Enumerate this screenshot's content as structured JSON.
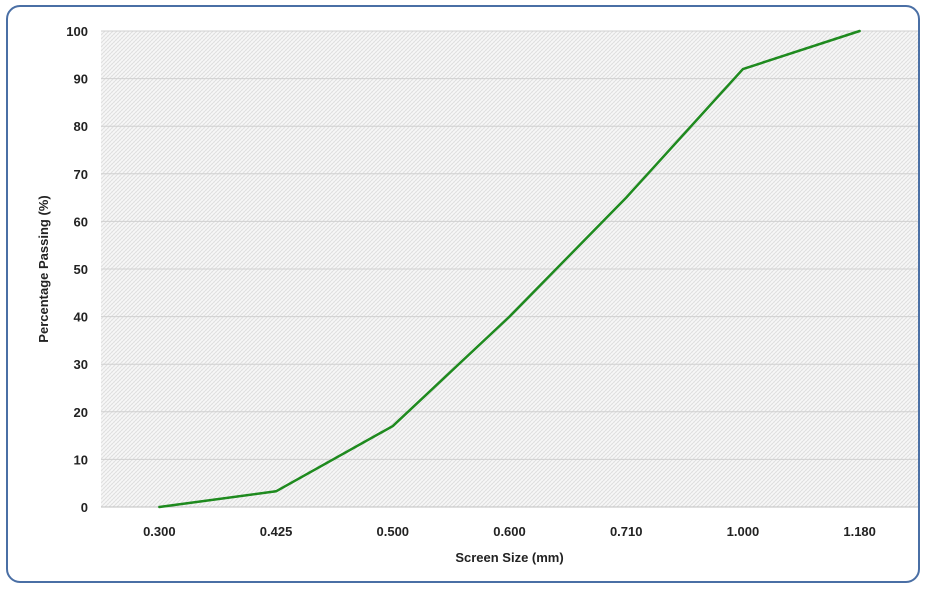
{
  "chart_data": {
    "type": "line",
    "title": "",
    "xlabel": "Screen Size (mm)",
    "ylabel": "Percentage Passing (%)",
    "categories": [
      "0.300",
      "0.425",
      "0.500",
      "0.600",
      "0.710",
      "1.000",
      "1.180"
    ],
    "series": [
      {
        "values": [
          0,
          3.3,
          17,
          40,
          65,
          92,
          100
        ],
        "color": "#1e8a1e"
      }
    ],
    "ylim": [
      0,
      100
    ],
    "yticks": [
      "0",
      "10",
      "20",
      "30",
      "40",
      "50",
      "60",
      "70",
      "80",
      "90",
      "100"
    ],
    "grid": true,
    "legend": "none",
    "plot_background": "hatched-light-gray",
    "frame_color": "#4a6fa5"
  }
}
